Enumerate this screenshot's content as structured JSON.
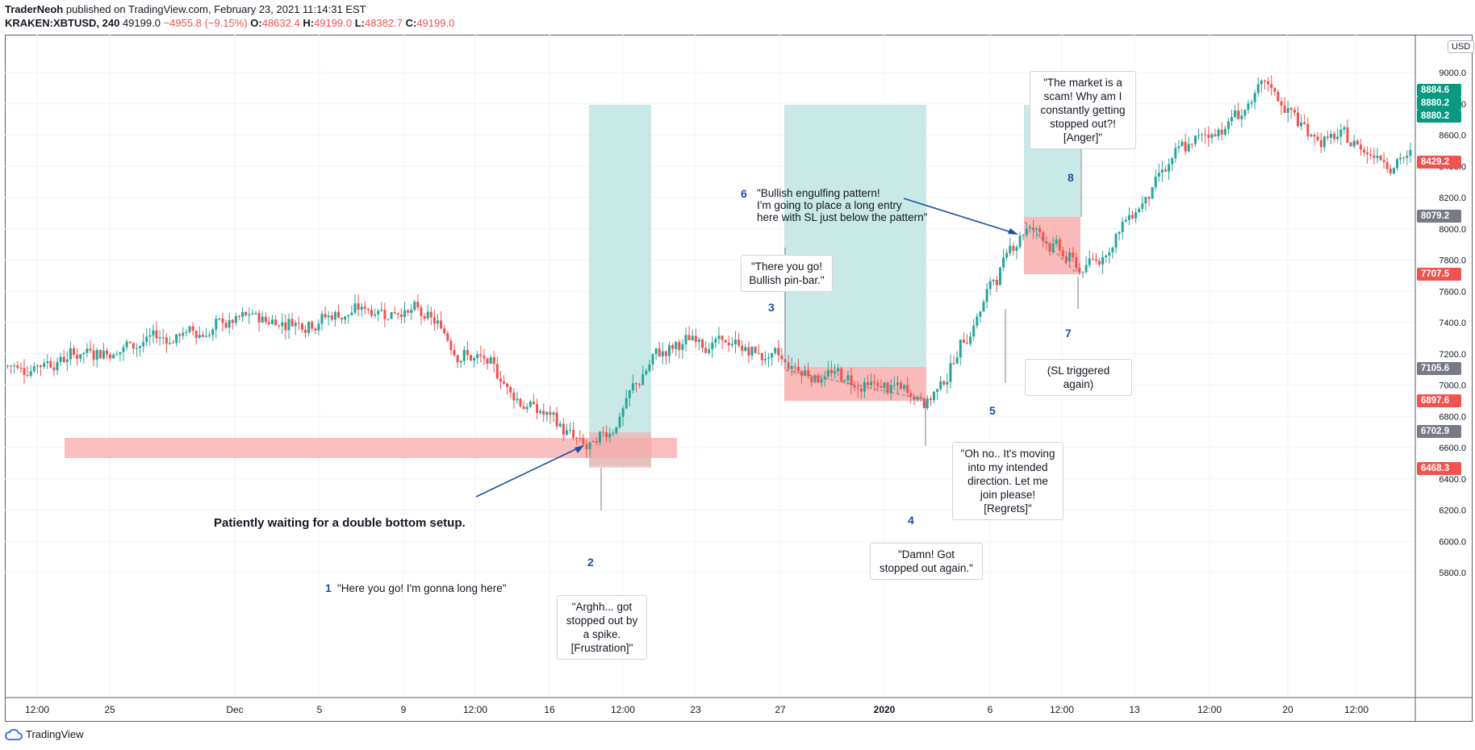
{
  "header": {
    "author": "TraderNeoh",
    "published": "published on TradingView.com, February 23, 2021 11:14:31 EST",
    "symbol": "KRAKEN:XBTUSD, 240",
    "last": "49199.0",
    "change": "−4955.8 (−9.15%)",
    "o_label": "O:",
    "o": "48632.4",
    "h_label": "H:",
    "h": "49199.0",
    "l_label": "L:",
    "l": "48382.7",
    "c_label": "C:",
    "c": "49199.0"
  },
  "footer": {
    "brand": "TradingView"
  },
  "currency": "USD",
  "colors": {
    "up": "#26a69a",
    "down": "#ef5350",
    "profit_zone": "#b2dfdb",
    "loss_zone": "#f7a9a8",
    "arrow": "#1c4fa3"
  },
  "chart_data": {
    "type": "candlestick",
    "y_ticks": [
      5800,
      6000,
      6200,
      6400,
      6600,
      6800,
      7000,
      7200,
      7400,
      7600,
      7800,
      8000,
      8200,
      8400,
      8600,
      8800,
      9000
    ],
    "y_tick_labels": [
      "5800.0",
      "6000.0",
      "6200.0",
      "6400.0",
      "6600.0",
      "6800.0",
      "7000.0",
      "7200.0",
      "7400.0",
      "7600.0",
      "7800.0",
      "8000.0",
      "8200.0",
      "8400.0",
      "8600.0",
      "8800.0",
      "9000.0"
    ],
    "ylim": [
      5650,
      9250
    ],
    "x_ticks": [
      "12:00",
      "25",
      "Dec",
      "5",
      "9",
      "12:00",
      "16",
      "12:00",
      "23",
      "27",
      "2020",
      "6",
      "12:00",
      "13",
      "12:00",
      "20",
      "12:00"
    ],
    "price_labels": [
      {
        "value": 8884.6,
        "text": "8884.6",
        "color": "#089981"
      },
      {
        "value": 8880.2,
        "text": "8880.2",
        "color": "#089981"
      },
      {
        "value": 8880.2,
        "text": "8880.2",
        "color": "#089981"
      },
      {
        "value": 8429.2,
        "text": "8429.2",
        "color": "#ef5350"
      },
      {
        "value": 8079.2,
        "text": "8079.2",
        "color": "#787b86"
      },
      {
        "value": 7707.5,
        "text": "7707.5",
        "color": "#ef5350"
      },
      {
        "value": 7105.6,
        "text": "7105.6",
        "color": "#787b86"
      },
      {
        "value": 6897.6,
        "text": "6897.6",
        "color": "#ef5350"
      },
      {
        "value": 6702.9,
        "text": "6702.9",
        "color": "#787b86"
      },
      {
        "value": 6468.3,
        "text": "6468.3",
        "color": "#ef5350"
      }
    ],
    "anchors": [
      {
        "value": 7120,
        "at": "start"
      },
      {
        "value": 7300,
        "at": "Nov 23"
      },
      {
        "value": 7400,
        "at": "Dec 1"
      },
      {
        "value": 7500,
        "at": "Dec 9"
      },
      {
        "value": 6550,
        "at": "Dec 18"
      },
      {
        "value": 7200,
        "at": "Dec 22"
      },
      {
        "value": 7100,
        "at": "Dec 29"
      },
      {
        "value": 6900,
        "at": "Jan 2"
      },
      {
        "value": 8080,
        "at": "Jan 7"
      },
      {
        "value": 7700,
        "at": "Jan 10"
      },
      {
        "value": 8400,
        "at": "Jan 14"
      },
      {
        "value": 8900,
        "at": "Jan 17"
      },
      {
        "value": 8600,
        "at": "Jan 20"
      },
      {
        "value": 8430,
        "at": "end"
      }
    ]
  },
  "annotations": {
    "banner": "Patiently waiting for a double bottom setup.",
    "n1": "1",
    "t1": "\"Here you go! I'm gonna long here\"",
    "n2": "2",
    "t2": "\"Arghh... got\nstopped out by\na spike.\n[Frustration]\"",
    "n3": "3",
    "t3": "\"There you go!\nBullish pin-bar.\"",
    "n4": "4",
    "t4": "\"Damn! Got\nstopped out again.\"",
    "n5": "5",
    "t5": "\"Oh no.. It's moving\ninto my intended\ndirection. Let me\njoin please!\n[Regrets]\"",
    "n6": "6",
    "t6": "\"Bullish engulfing pattern!\nI'm going to place a long entry\nhere with SL just below the pattern\"",
    "n7": "7",
    "t7": "(SL triggered again)",
    "n8": "8",
    "t8": "\"The market is a\nscam! Why am I\nconstantly getting\nstopped out?!\n[Anger]\""
  }
}
